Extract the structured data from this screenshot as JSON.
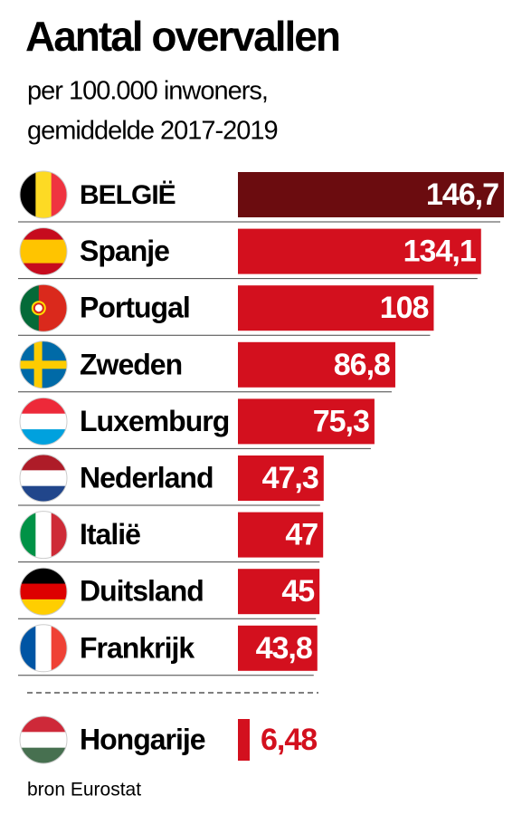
{
  "chart_data": {
    "type": "bar",
    "orientation": "horizontal",
    "title": "Aantal overvallen",
    "subtitle": [
      "per 100.000 inwoners,",
      "gemiddelde 2017-2019"
    ],
    "categories": [
      "BELGIË",
      "Spanje",
      "Portugal",
      "Zweden",
      "Luxemburg",
      "Nederland",
      "Italië",
      "Duitsland",
      "Frankrijk",
      "Hongarije"
    ],
    "values": [
      146.7,
      134.1,
      108,
      86.8,
      75.3,
      47.3,
      47,
      45,
      43.8,
      6.48
    ],
    "value_labels": [
      "146,7",
      "134,1",
      "108",
      "86,8",
      "75,3",
      "47,3",
      "47",
      "45",
      "43,8",
      "6,48"
    ],
    "colors": [
      "#6b0c0f",
      "#d3101e",
      "#d3101e",
      "#d3101e",
      "#d3101e",
      "#d3101e",
      "#d3101e",
      "#d3101e",
      "#d3101e",
      "#d3101e"
    ],
    "source": "bron Eurostat"
  }
}
